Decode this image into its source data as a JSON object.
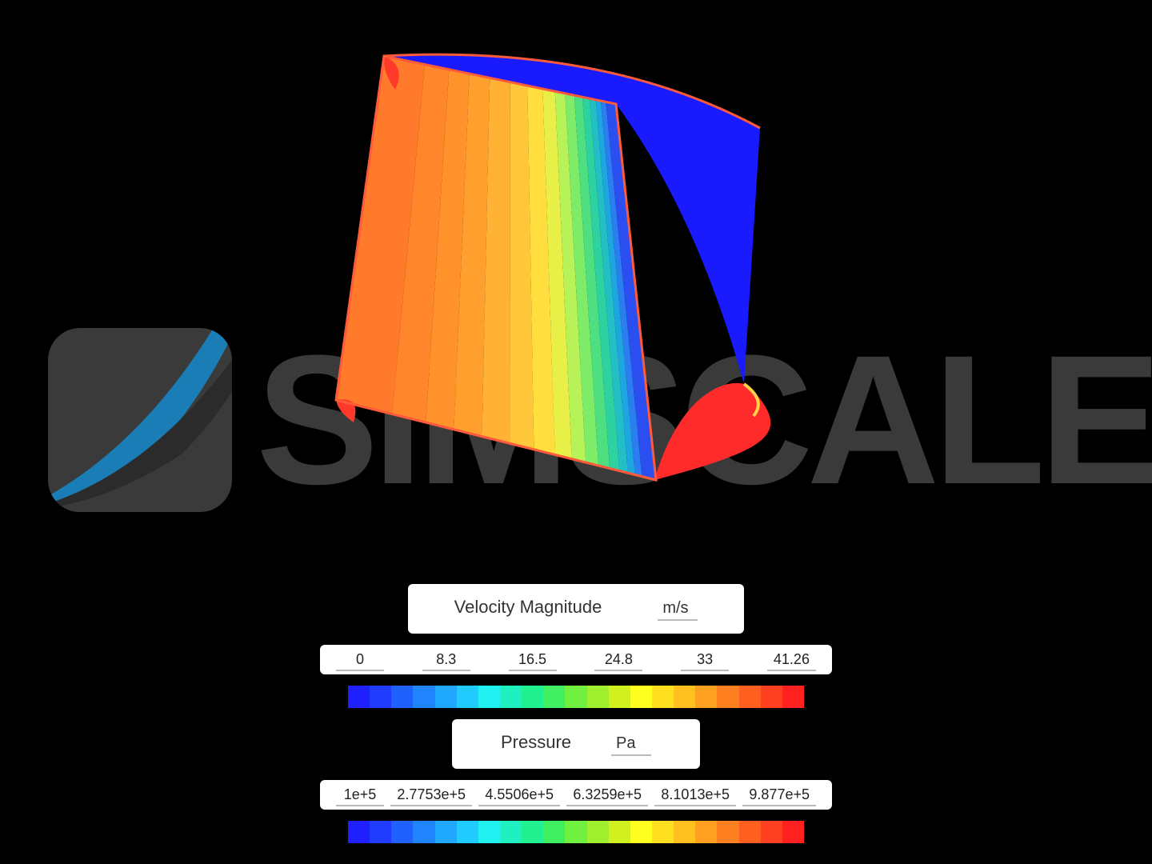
{
  "background_color": "#000000",
  "logo": {
    "text": "SIMSCALE",
    "text_color": "#3a3a3a",
    "icon": {
      "bg_color": "#3a3a3a",
      "swoosh_blue": "#1a7db6",
      "swoosh_dark": "#2b2b2b",
      "border_radius": 40
    }
  },
  "simulation_mesh": {
    "type": "cfd-contour-wedge",
    "outline_color": "#ff5a3a",
    "face_contours": {
      "colors": [
        "#ff7a2a",
        "#ff862a",
        "#ff922a",
        "#ffa02e",
        "#ffb234",
        "#ffc83a",
        "#ffde3e",
        "#e8f048",
        "#b6f258",
        "#7eec68",
        "#4ee080",
        "#2ed2a0",
        "#22c0c4",
        "#1ea6e0",
        "#2a7ef0",
        "#2a4ef0"
      ],
      "widths": [
        80,
        48,
        40,
        40,
        40,
        34,
        30,
        24,
        20,
        18,
        16,
        14,
        12,
        10,
        10,
        20
      ]
    },
    "top_face_color": "#1a1aff",
    "right_face_colors": [
      "#ff2a2a",
      "#ff2a2a"
    ],
    "corner_arc_color": "#ff3a2a"
  },
  "velocity_legend": {
    "title": "Velocity Magnitude",
    "unit": "m/s",
    "ticks": [
      "0",
      "8.3",
      "16.5",
      "24.8",
      "33",
      "41.26"
    ],
    "colorbar": [
      "#2020ff",
      "#203cff",
      "#2060ff",
      "#2084ff",
      "#20a8ff",
      "#20ccff",
      "#20f0f0",
      "#20f0c0",
      "#20f090",
      "#40f060",
      "#70f040",
      "#a0f030",
      "#d0f020",
      "#ffff20",
      "#ffe020",
      "#ffc020",
      "#ffa020",
      "#ff8020",
      "#ff6020",
      "#ff4020",
      "#ff2020"
    ]
  },
  "pressure_legend": {
    "title": "Pressure",
    "unit": "Pa",
    "ticks": [
      "1e+5",
      "2.7753e+5",
      "4.5506e+5",
      "6.3259e+5",
      "8.1013e+5",
      "9.877e+5"
    ],
    "colorbar": [
      "#2020ff",
      "#203cff",
      "#2060ff",
      "#2084ff",
      "#20a8ff",
      "#20ccff",
      "#20f0f0",
      "#20f0c0",
      "#20f090",
      "#40f060",
      "#70f040",
      "#a0f030",
      "#d0f020",
      "#ffff20",
      "#ffe020",
      "#ffc020",
      "#ffa020",
      "#ff8020",
      "#ff6020",
      "#ff4020",
      "#ff2020"
    ]
  }
}
